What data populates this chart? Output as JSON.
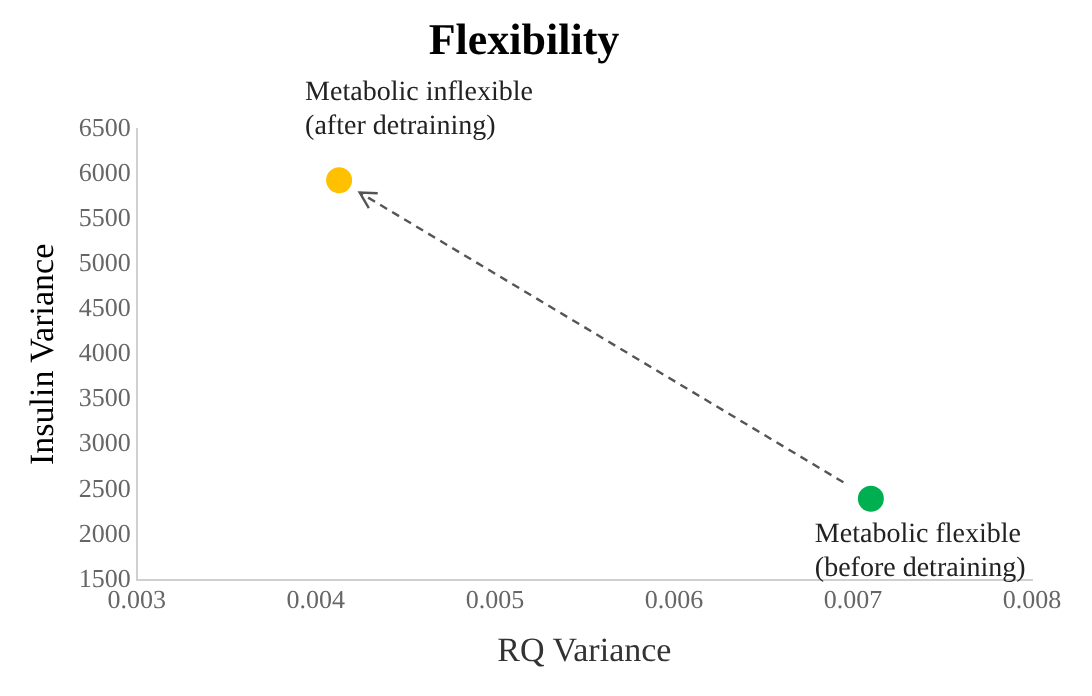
{
  "chart_data": {
    "type": "scatter",
    "title": "Flexibility",
    "xlabel": "RQ Variance",
    "ylabel": "Insulin Variance",
    "x": [
      0.00413,
      0.0071
    ],
    "values": [
      5930,
      2400
    ],
    "colors": [
      "#ffc000",
      "#00b050"
    ],
    "xlim": [
      0.003,
      0.008
    ],
    "xticks": [
      0.003,
      0.004,
      0.005,
      0.006,
      0.007,
      0.008
    ],
    "ylim": [
      1500,
      6500
    ],
    "yticks": [
      1500,
      2000,
      2500,
      3000,
      3500,
      4000,
      4500,
      5000,
      5500,
      6000,
      6500
    ],
    "annotations": [
      {
        "text": "Metabolic inflexible\n(after detraining)",
        "x": 0.00413,
        "y": 5930
      },
      {
        "text": "Metabolic flexible\n(before detraining)",
        "x": 0.0071,
        "y": 2400
      }
    ],
    "grid": false,
    "legend": false,
    "marker": "circle"
  }
}
